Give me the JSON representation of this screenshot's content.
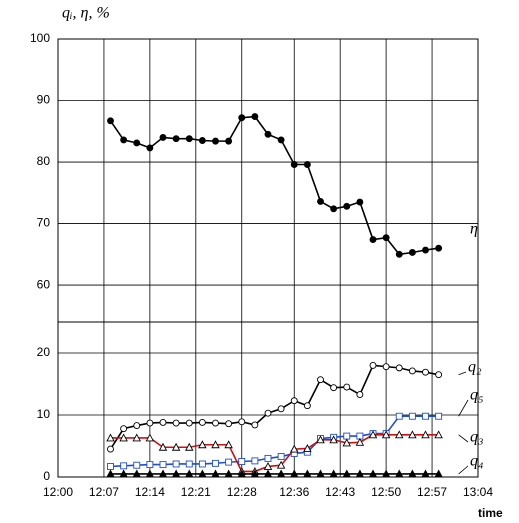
{
  "chart_data": [
    {
      "type": "line",
      "y_label": "qᵢ, η, %",
      "x": [
        "12:08",
        "12:10",
        "12:12",
        "12:14",
        "12:16",
        "12:18",
        "12:20",
        "12:22",
        "12:24",
        "12:26",
        "12:28",
        "12:30",
        "12:32",
        "12:34",
        "12:36",
        "12:38",
        "12:40",
        "12:42",
        "12:44",
        "12:46",
        "12:48",
        "12:50",
        "12:52",
        "12:54",
        "12:56",
        "12:58"
      ],
      "xlim": [
        "12:00",
        "13:04"
      ],
      "ylim": [
        54,
        100
      ],
      "yticks": [
        60,
        70,
        80,
        90,
        100
      ],
      "grid": true,
      "series": [
        {
          "name": "η",
          "color": "#000000",
          "marker": "circle",
          "values": [
            86.7,
            83.6,
            83.1,
            82.3,
            84.0,
            83.8,
            83.8,
            83.5,
            83.4,
            83.4,
            87.2,
            87.4,
            84.5,
            83.6,
            79.6,
            79.6,
            73.6,
            72.4,
            72.8,
            73.5,
            67.4,
            67.7,
            65.0,
            65.3,
            65.7,
            66.0
          ]
        }
      ]
    },
    {
      "type": "line",
      "x_label": "time",
      "x": [
        "12:08",
        "12:10",
        "12:12",
        "12:14",
        "12:16",
        "12:18",
        "12:20",
        "12:22",
        "12:24",
        "12:26",
        "12:28",
        "12:30",
        "12:32",
        "12:34",
        "12:36",
        "12:38",
        "12:40",
        "12:42",
        "12:44",
        "12:46",
        "12:48",
        "12:50",
        "12:52",
        "12:54",
        "12:56",
        "12:58"
      ],
      "xlim": [
        "12:00",
        "13:04"
      ],
      "xticks": [
        "12:00",
        "12:07",
        "12:14",
        "12:21",
        "12:28",
        "12:36",
        "12:43",
        "12:50",
        "12:57",
        "13:04"
      ],
      "ylim": [
        0,
        25
      ],
      "yticks": [
        0,
        10,
        20
      ],
      "grid": true,
      "series": [
        {
          "name": "q₂",
          "color": "#000000",
          "marker": "circle-open",
          "values": [
            4.5,
            7.8,
            8.3,
            8.7,
            8.8,
            8.7,
            8.7,
            8.8,
            8.7,
            8.6,
            8.9,
            8.4,
            10.3,
            11.0,
            12.3,
            11.5,
            15.7,
            14.4,
            14.5,
            13.3,
            18.0,
            17.8,
            17.6,
            17.1,
            16.9,
            16.5
          ]
        },
        {
          "name": "q₅",
          "color": "#1f4fd0",
          "marker": "square-open",
          "values": [
            1.7,
            1.8,
            1.9,
            2.0,
            2.0,
            2.1,
            2.1,
            2.1,
            2.2,
            2.4,
            2.5,
            2.6,
            3.0,
            3.3,
            3.8,
            4.0,
            6.2,
            6.4,
            6.6,
            6.6,
            7.0,
            7.0,
            9.8,
            9.8,
            9.8,
            9.8
          ]
        },
        {
          "name": "q₃",
          "color": "#d01010",
          "marker": "triangle-open",
          "values": [
            6.3,
            6.3,
            6.3,
            6.3,
            4.8,
            4.8,
            4.8,
            5.2,
            5.2,
            5.2,
            0.9,
            0.9,
            1.7,
            1.9,
            4.5,
            4.6,
            6.0,
            6.0,
            5.5,
            5.6,
            6.8,
            6.8,
            6.8,
            6.8,
            6.8,
            6.8
          ]
        },
        {
          "name": "q₄",
          "color": "#000000",
          "marker": "triangle",
          "values": [
            0.5,
            0.5,
            0.5,
            0.5,
            0.5,
            0.5,
            0.5,
            0.5,
            0.5,
            0.5,
            0.5,
            0.5,
            0.5,
            0.5,
            0.5,
            0.5,
            0.5,
            0.5,
            0.5,
            0.5,
            0.5,
            0.5,
            0.5,
            0.5,
            0.5,
            0.5
          ]
        }
      ]
    }
  ]
}
